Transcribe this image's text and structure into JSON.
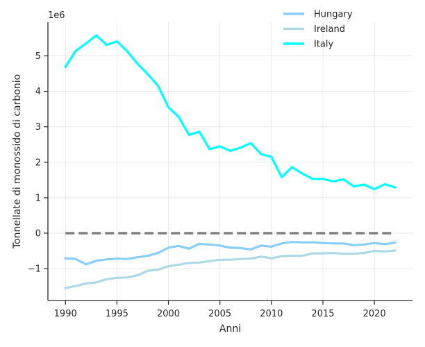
{
  "chart_data": {
    "type": "line",
    "xlabel": "Anni",
    "ylabel": "Tonnellate di monossido di carbonio",
    "scale_label": "1e6",
    "xlim": [
      1988.3,
      2023.7
    ],
    "ylim": [
      -1.9,
      5.95
    ],
    "xticks": [
      1990,
      1995,
      2000,
      2005,
      2010,
      2015,
      2020
    ],
    "yticks": [
      -1,
      0,
      1,
      2,
      3,
      4,
      5
    ],
    "grid": true,
    "legend_position": "top-right",
    "x": [
      1990,
      1991,
      1992,
      1993,
      1994,
      1995,
      1996,
      1997,
      1998,
      1999,
      2000,
      2001,
      2002,
      2003,
      2004,
      2005,
      2006,
      2007,
      2008,
      2009,
      2010,
      2011,
      2012,
      2013,
      2014,
      2015,
      2016,
      2017,
      2018,
      2019,
      2020,
      2021,
      2022
    ],
    "series": [
      {
        "name": "Hungary",
        "color": "#87cefa",
        "values": [
          -0.71,
          -0.73,
          -0.88,
          -0.78,
          -0.74,
          -0.72,
          -0.73,
          -0.68,
          -0.64,
          -0.56,
          -0.41,
          -0.36,
          -0.44,
          -0.3,
          -0.32,
          -0.35,
          -0.41,
          -0.42,
          -0.46,
          -0.35,
          -0.38,
          -0.29,
          -0.25,
          -0.26,
          -0.26,
          -0.28,
          -0.29,
          -0.29,
          -0.34,
          -0.32,
          -0.28,
          -0.31,
          -0.27
        ]
      },
      {
        "name": "Ireland",
        "color": "#add8e6",
        "values": [
          -1.55,
          -1.49,
          -1.42,
          -1.39,
          -1.3,
          -1.26,
          -1.25,
          -1.19,
          -1.06,
          -1.03,
          -0.93,
          -0.89,
          -0.84,
          -0.83,
          -0.79,
          -0.75,
          -0.75,
          -0.73,
          -0.72,
          -0.66,
          -0.71,
          -0.65,
          -0.64,
          -0.64,
          -0.57,
          -0.57,
          -0.56,
          -0.58,
          -0.58,
          -0.56,
          -0.5,
          -0.52,
          -0.49
        ]
      },
      {
        "name": "Italy",
        "color": "#00ffff",
        "values": [
          4.69,
          5.14,
          5.35,
          5.58,
          5.31,
          5.41,
          5.13,
          4.78,
          4.48,
          4.15,
          3.55,
          3.28,
          2.77,
          2.86,
          2.37,
          2.45,
          2.32,
          2.41,
          2.54,
          2.23,
          2.15,
          1.58,
          1.86,
          1.68,
          1.53,
          1.53,
          1.46,
          1.52,
          1.32,
          1.37,
          1.24,
          1.38,
          1.29
        ]
      }
    ],
    "reference_line": {
      "y": 0,
      "color": "#808080",
      "style": "dashed"
    }
  }
}
